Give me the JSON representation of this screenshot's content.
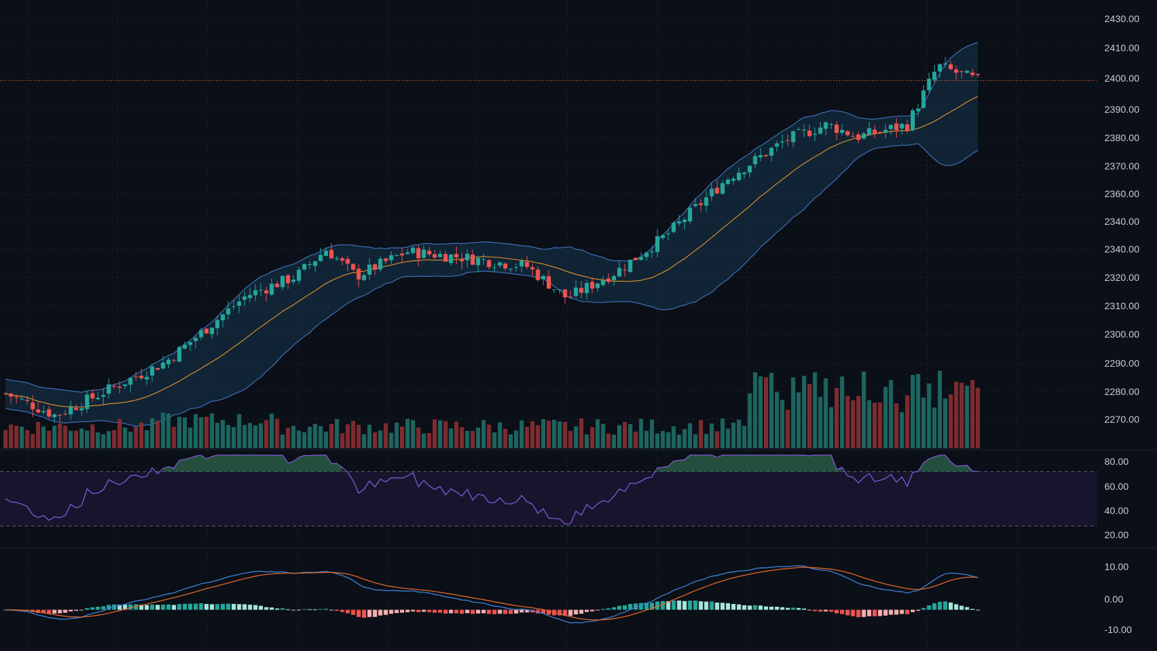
{
  "colors": {
    "background": "#0b0f17",
    "grid": "#1a2230",
    "up": "#26a69a",
    "down": "#ef5350",
    "up_volume": "#1f6f66",
    "down_volume": "#8b2f33",
    "bb_line": "#3d6fb6",
    "bb_fill": "#12283b",
    "sma": "#d98a2b",
    "rsi_line": "#7b5cd6",
    "rsi_band": "#1a1530",
    "rsi_overbought_fill": "#2f6b4e",
    "macd_line": "#3d82d8",
    "signal_line": "#e0672a",
    "hist_up_strong": "#26a69a",
    "hist_up_weak": "#a7e6dc",
    "hist_down_strong": "#ef5350",
    "hist_down_weak": "#f6b0b0",
    "axis_text": "#c7ccd6",
    "price_line": "#d9623a"
  },
  "chart_data": [
    {
      "id": "price",
      "type": "candlestick",
      "price_axis_labels": [
        "2430.00",
        "2410.00",
        "2400.00",
        "2390.00",
        "2380.00",
        "2370.00",
        "2360.00",
        "2340.00",
        "2340.00",
        "2320.00",
        "2310.00",
        "2300.00",
        "2290.00",
        "2280.00",
        "2270.00"
      ],
      "ylim": [
        2255,
        2435
      ],
      "current_price": 2406,
      "overlays": [
        "bollinger_bands",
        "sma"
      ],
      "grid": true,
      "candles": []
    },
    {
      "id": "volume",
      "type": "bar",
      "values": []
    },
    {
      "id": "rsi",
      "type": "line",
      "axis_labels": [
        "80.00",
        "60.00",
        "40.00",
        "20.00"
      ],
      "levels": [
        70,
        30
      ],
      "ylim": [
        15,
        85
      ],
      "values": []
    },
    {
      "id": "macd",
      "type": "line",
      "axis_labels": [
        "10.00",
        "0.00",
        "-10.00"
      ],
      "ylim": [
        -10,
        15
      ],
      "series": [
        {
          "key": "macd",
          "values": []
        },
        {
          "key": "signal",
          "values": []
        }
      ],
      "histogram": []
    }
  ]
}
